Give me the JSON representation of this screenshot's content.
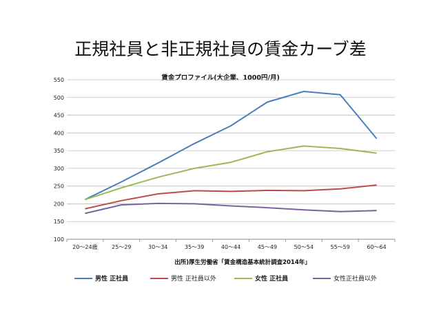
{
  "slide": {
    "title": "正規社員と非正規社員の賃金カーブ差"
  },
  "chart_data": {
    "type": "line",
    "title": "賃金プロファイル(大企業、1000円/月)",
    "source": "出所)厚生労働省「賃金構造基本統計調査2014年」",
    "categories": [
      "20～24歳",
      "25～29",
      "30～34",
      "35～39",
      "40～44",
      "45～49",
      "50～54",
      "55～59",
      "60～64"
    ],
    "ylim": [
      100,
      550
    ],
    "yticks": [
      100,
      150,
      200,
      250,
      300,
      350,
      400,
      450,
      500,
      550
    ],
    "grid": true,
    "legend_position": "bottom",
    "series": [
      {
        "name": "男性 正社員",
        "color": "#4a7ebb",
        "bold": true,
        "values": [
          212,
          262,
          315,
          370,
          420,
          487,
          517,
          508,
          384
        ]
      },
      {
        "name": "男性 正社員以外",
        "color": "#be4b48",
        "bold": false,
        "values": [
          186,
          209,
          228,
          237,
          235,
          238,
          237,
          242,
          253
        ]
      },
      {
        "name": "女性 正社員",
        "color": "#98b954",
        "bold": true,
        "values": [
          212,
          245,
          275,
          300,
          317,
          347,
          363,
          356,
          343
        ]
      },
      {
        "name": "女性正社員以外",
        "color": "#7d60a0",
        "bold": false,
        "values": [
          173,
          197,
          201,
          200,
          194,
          189,
          183,
          178,
          181
        ]
      }
    ]
  }
}
